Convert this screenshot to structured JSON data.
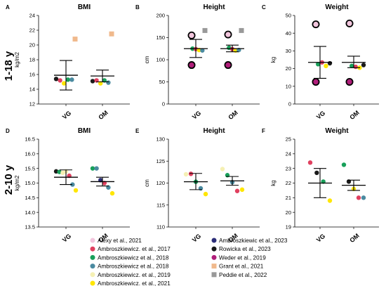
{
  "row_titles": [
    "1-18 y",
    "2-10 y"
  ],
  "x_categories": [
    "VG",
    "OM"
  ],
  "legend": [
    {
      "label": "Alexy et al., 2021",
      "color": "#f2c6dd",
      "shape": "circle"
    },
    {
      "label": "Ambroszkiewicz. et al., 2017",
      "color": "#e0405f",
      "shape": "circle"
    },
    {
      "label": "Ambroszkiewicz et al., 2018",
      "color": "#18a05a",
      "shape": "circle"
    },
    {
      "label": "Ambroszkiewicz et al., 2018",
      "color": "#4a8aa0",
      "shape": "circle"
    },
    {
      "label": "Ambroszkiewicz. et al., 2019",
      "color": "#f5f0b4",
      "shape": "circle"
    },
    {
      "label": "Ambroszkiewicz. et al., 2021",
      "color": "#ffe600",
      "shape": "circle"
    },
    {
      "label": "Ambroszkiewic et al., 2023",
      "color": "#2c2e78",
      "shape": "circle"
    },
    {
      "label": "Rowicka et al., 2023",
      "color": "#1a1a1a",
      "shape": "circle"
    },
    {
      "label": "Weder et al., 2019",
      "color": "#b01e7a",
      "shape": "circle"
    },
    {
      "label": "Grant et al., 2021",
      "color": "#f0b98c",
      "shape": "square"
    },
    {
      "label": "Peddie et al., 2022",
      "color": "#999999",
      "shape": "square"
    }
  ],
  "chart_data": [
    {
      "letter": "A",
      "title": "BMI",
      "ylabel": "kg/m2",
      "type": "scatter",
      "ylim": [
        12,
        24
      ],
      "yticks": [
        12,
        14,
        16,
        18,
        20,
        22,
        24
      ],
      "groups": [
        {
          "category": "VG",
          "mean": 15.9,
          "error": [
            13.9,
            17.9
          ],
          "points": [
            {
              "y": 15.4,
              "color": "#1a1a1a"
            },
            {
              "y": 15.2,
              "color": "#e0405f"
            },
            {
              "y": 14.8,
              "color": "#ffe600"
            },
            {
              "y": 15.3,
              "color": "#18a05a"
            },
            {
              "y": 15.3,
              "color": "#4a8aa0"
            },
            {
              "y": 20.8,
              "color": "#f0b98c",
              "shape": "square"
            }
          ]
        },
        {
          "category": "OM",
          "mean": 15.8,
          "error": [
            15.0,
            16.6
          ],
          "points": [
            {
              "y": 15.1,
              "color": "#1a1a1a"
            },
            {
              "y": 15.2,
              "color": "#e0405f"
            },
            {
              "y": 14.8,
              "color": "#ffe600"
            },
            {
              "y": 15.2,
              "color": "#18a05a"
            },
            {
              "y": 14.9,
              "color": "#4a8aa0"
            },
            {
              "y": 21.5,
              "color": "#f0b98c",
              "shape": "square"
            }
          ]
        }
      ]
    },
    {
      "letter": "B",
      "title": "Height",
      "ylabel": "cm",
      "type": "scatter",
      "ylim": [
        0,
        200
      ],
      "yticks": [
        0,
        50,
        100,
        150,
        200
      ],
      "groups": [
        {
          "category": "VG",
          "mean": 125,
          "error": [
            105,
            146
          ],
          "points": [
            {
              "y": 155,
              "color": "#f2c6dd",
              "big": true
            },
            {
              "y": 88,
              "color": "#b01e7a",
              "big": true
            },
            {
              "y": 125,
              "color": "#18a05a"
            },
            {
              "y": 124,
              "color": "#e0405f"
            },
            {
              "y": 122,
              "color": "#ffe600"
            },
            {
              "y": 121,
              "color": "#4a8aa0"
            },
            {
              "y": 166,
              "color": "#999999",
              "shape": "square"
            }
          ]
        },
        {
          "category": "OM",
          "mean": 125,
          "error": [
            118,
            133
          ],
          "points": [
            {
              "y": 157,
              "color": "#f2c6dd",
              "big": true
            },
            {
              "y": 88,
              "color": "#b01e7a",
              "big": true
            },
            {
              "y": 127,
              "color": "#18a05a"
            },
            {
              "y": 124,
              "color": "#e0405f"
            },
            {
              "y": 121,
              "color": "#ffe600"
            },
            {
              "y": 122,
              "color": "#4a8aa0"
            },
            {
              "y": 166,
              "color": "#999999",
              "shape": "square"
            }
          ]
        }
      ]
    },
    {
      "letter": "C",
      "title": "Weight",
      "ylabel": "kg",
      "type": "scatter",
      "ylim": [
        0,
        50
      ],
      "yticks": [
        0,
        10,
        20,
        30,
        40,
        50
      ],
      "groups": [
        {
          "category": "VG",
          "mean": 23.5,
          "error": [
            14.5,
            32.5
          ],
          "points": [
            {
              "y": 45,
              "color": "#f2c6dd",
              "big": true
            },
            {
              "y": 12.5,
              "color": "#b01e7a",
              "big": true
            },
            {
              "y": 22.5,
              "color": "#18a05a"
            },
            {
              "y": 23.5,
              "color": "#e0405f"
            },
            {
              "y": 21.5,
              "color": "#ffe600"
            },
            {
              "y": 23,
              "color": "#1a1a1a"
            }
          ]
        },
        {
          "category": "OM",
          "mean": 23.5,
          "error": [
            20.5,
            27
          ],
          "points": [
            {
              "y": 45.5,
              "color": "#f2c6dd",
              "big": true
            },
            {
              "y": 12.5,
              "color": "#b01e7a",
              "big": true
            },
            {
              "y": 21.5,
              "color": "#18a05a"
            },
            {
              "y": 21,
              "color": "#e0405f"
            },
            {
              "y": 20.5,
              "color": "#ffe600"
            },
            {
              "y": 22,
              "color": "#1a1a1a"
            }
          ]
        }
      ]
    },
    {
      "letter": "D",
      "title": "BMI",
      "ylabel": "kg/m2",
      "type": "scatter",
      "ylim": [
        13.5,
        16.5
      ],
      "yticks": [
        13.5,
        14.0,
        14.5,
        15.0,
        15.5,
        16.0,
        16.5
      ],
      "groups": [
        {
          "category": "VG",
          "mean": 15.2,
          "error": [
            14.95,
            15.45
          ],
          "points": [
            {
              "y": 15.4,
              "color": "#1a1a1a"
            },
            {
              "y": 15.38,
              "color": "#18a05a"
            },
            {
              "y": 15.35,
              "color": "#f5f0b4"
            },
            {
              "y": 15.4,
              "color": "#f5f0b4"
            },
            {
              "y": 15.25,
              "color": "#e0405f"
            },
            {
              "y": 14.95,
              "color": "#4a8aa0"
            },
            {
              "y": 14.75,
              "color": "#ffe600"
            }
          ]
        },
        {
          "category": "OM",
          "mean": 15.05,
          "error": [
            14.9,
            15.2
          ],
          "points": [
            {
              "y": 15.5,
              "color": "#18a05a"
            },
            {
              "y": 15.5,
              "color": "#4a8aa0"
            },
            {
              "y": 15.1,
              "color": "#2c2e78"
            },
            {
              "y": 15.0,
              "color": "#e0405f"
            },
            {
              "y": 14.85,
              "color": "#4a8aa0"
            },
            {
              "y": 14.65,
              "color": "#ffe600"
            }
          ]
        }
      ]
    },
    {
      "letter": "E",
      "title": "Height",
      "ylabel": "cm",
      "type": "scatter",
      "ylim": [
        110,
        130
      ],
      "yticks": [
        110,
        115,
        120,
        125,
        130
      ],
      "groups": [
        {
          "category": "VG",
          "mean": 120.3,
          "error": [
            118.5,
            122.2
          ],
          "points": [
            {
              "y": 122,
              "color": "#f5f0b4"
            },
            {
              "y": 122.1,
              "color": "#e0405f"
            },
            {
              "y": 120.3,
              "color": "#18a05a"
            },
            {
              "y": 118.8,
              "color": "#4a8aa0"
            },
            {
              "y": 117.5,
              "color": "#ffe600"
            }
          ]
        },
        {
          "category": "OM",
          "mean": 120.5,
          "error": [
            119.5,
            121.5
          ],
          "points": [
            {
              "y": 123.2,
              "color": "#f5f0b4"
            },
            {
              "y": 121.8,
              "color": "#18a05a"
            },
            {
              "y": 120.2,
              "color": "#4a8aa0"
            },
            {
              "y": 118.2,
              "color": "#e0405f"
            },
            {
              "y": 118.5,
              "color": "#ffe600"
            }
          ]
        }
      ]
    },
    {
      "letter": "F",
      "title": "Weight",
      "ylabel": "kg",
      "type": "scatter",
      "ylim": [
        19,
        25
      ],
      "yticks": [
        19,
        20,
        21,
        22,
        23,
        24,
        25
      ],
      "groups": [
        {
          "category": "VG",
          "mean": 22.0,
          "error": [
            21.0,
            23.0
          ],
          "points": [
            {
              "y": 23.4,
              "color": "#e0405f"
            },
            {
              "y": 22.7,
              "color": "#1a1a1a"
            },
            {
              "y": 22.1,
              "color": "#18a05a"
            },
            {
              "y": 20.8,
              "color": "#ffe600"
            }
          ]
        },
        {
          "category": "OM",
          "mean": 21.85,
          "error": [
            21.5,
            22.2
          ],
          "points": [
            {
              "y": 23.25,
              "color": "#18a05a"
            },
            {
              "y": 22.1,
              "color": "#1a1a1a"
            },
            {
              "y": 21.6,
              "color": "#ffe600"
            },
            {
              "y": 21.0,
              "color": "#e0405f"
            },
            {
              "y": 21.0,
              "color": "#4a8aa0"
            }
          ]
        }
      ]
    }
  ]
}
